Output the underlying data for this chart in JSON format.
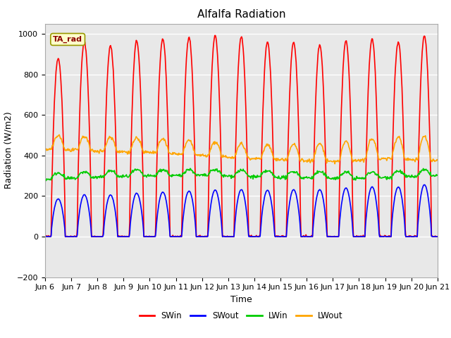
{
  "title": "Alfalfa Radiation",
  "xlabel": "Time",
  "ylabel": "Radiation (W/m2)",
  "ylim": [
    -200,
    1050
  ],
  "x_tick_labels": [
    "Jun 6",
    "Jun 7",
    "Jun 8",
    "Jun 9",
    "Jun 10",
    "Jun 11",
    "Jun 12",
    "Jun 13",
    "Jun 14",
    "Jun 15",
    "Jun 16",
    "Jun 17",
    "Jun 18",
    "Jun 19",
    "Jun 20",
    "Jun 21"
  ],
  "annotation_text": "TA_rad",
  "series_colors": {
    "SWin": "#ff0000",
    "SWout": "#0000ff",
    "LWin": "#00cc00",
    "LWout": "#ffa500"
  },
  "background_color": "#e8e8e8",
  "figure_bg": "#ffffff",
  "title_fontsize": 11,
  "axis_label_fontsize": 9,
  "tick_label_fontsize": 8,
  "line_width": 1.2
}
